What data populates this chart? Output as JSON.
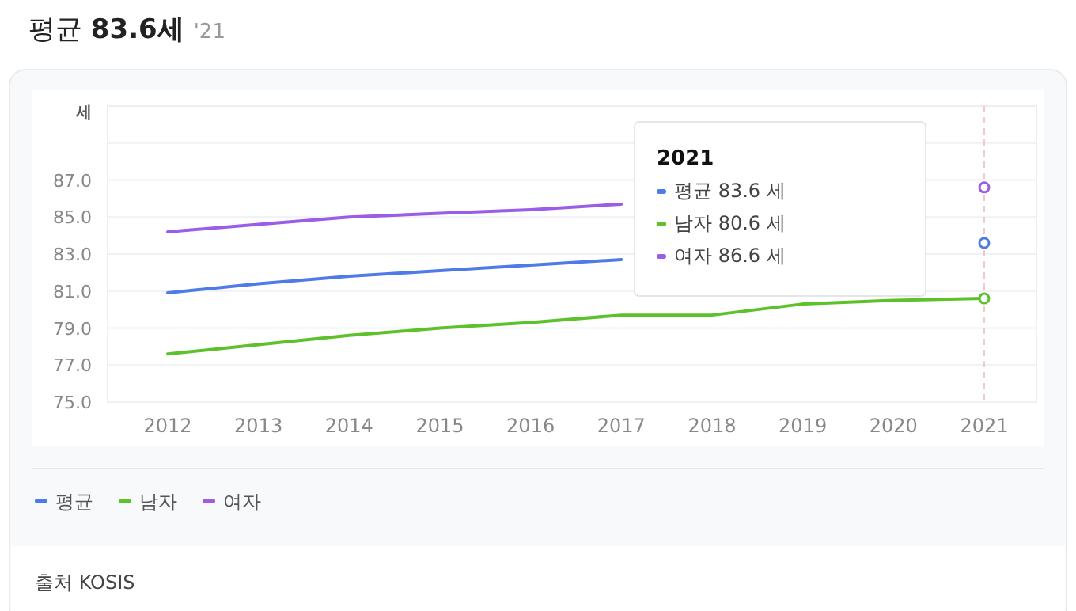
{
  "chart_data": {
    "type": "line",
    "title": "평균 83.6세",
    "subtitle": "'21",
    "ylabel": "세",
    "categories": [
      "2012",
      "2013",
      "2014",
      "2015",
      "2016",
      "2017",
      "2018",
      "2019",
      "2020",
      "2021"
    ],
    "series": [
      {
        "name": "평균",
        "color": "#4e7be8",
        "values": [
          80.9,
          81.4,
          81.8,
          82.1,
          82.4,
          82.7,
          null,
          null,
          null,
          83.6
        ]
      },
      {
        "name": "남자",
        "color": "#5cc12a",
        "values": [
          77.6,
          78.1,
          78.6,
          79.0,
          79.3,
          79.7,
          79.7,
          80.3,
          80.5,
          80.6
        ]
      },
      {
        "name": "여자",
        "color": "#9b5de5",
        "values": [
          84.2,
          84.6,
          85.0,
          85.2,
          85.4,
          85.7,
          null,
          null,
          null,
          86.6
        ]
      }
    ],
    "ylim": [
      75,
      91
    ],
    "yticks": [
      {
        "value": 75,
        "label": "75.0"
      },
      {
        "value": 77,
        "label": "77.0"
      },
      {
        "value": 79,
        "label": "79.0"
      },
      {
        "value": 81,
        "label": "81.0"
      },
      {
        "value": 83,
        "label": "83.0"
      },
      {
        "value": 85,
        "label": "85.0"
      },
      {
        "value": 87,
        "label": "87.0"
      },
      {
        "value": 89,
        "label": null
      }
    ],
    "grid": "y",
    "legend": "bottom left",
    "marker": "none",
    "line_style": "solid",
    "ref_lines": [
      {
        "axis": "x",
        "value": "2021",
        "color": "#f0c8d0",
        "line_style": "dashed"
      }
    ],
    "annotations": [
      "2021",
      "평균 83.6 세",
      "남자 80.6 세",
      "여자 86.6 세",
      "출처 KOSIS"
    ]
  }
}
